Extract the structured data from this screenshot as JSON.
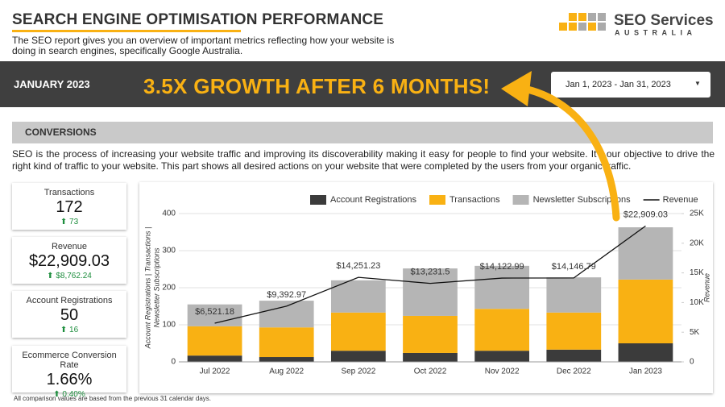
{
  "header": {
    "title": "SEARCH ENGINE OPTIMISATION PERFORMANCE",
    "subtitle": "The SEO report gives you an overview of important metrics reflecting how your website is doing in search engines, specifically Google Australia.",
    "logo_top": "SEO Services",
    "logo_bottom": "AUSTRALIA"
  },
  "banner": {
    "month": "JANUARY 2023",
    "headline": "3.5X GROWTH AFTER 6 MONTHS!",
    "date_range": "Jan 1, 2023 - Jan 31, 2023"
  },
  "section": {
    "title": "CONVERSIONS",
    "text": "SEO is the process of increasing your website traffic and improving its discoverability making it easy for people to find your website. It's our objective to drive the right kind of traffic to your website. This part shows all desired actions on your website that were completed by the users from your organic traffic."
  },
  "kpis": [
    {
      "label": "Transactions",
      "value": "172",
      "change": "73"
    },
    {
      "label": "Revenue",
      "value": "$22,909.03",
      "change": "$8,762.24"
    },
    {
      "label": "Account Registrations",
      "value": "50",
      "change": "16"
    },
    {
      "label": "Ecommerce Conversion Rate",
      "value": "1.66%",
      "change": "0.40%"
    }
  ],
  "footnote": "All comparison values are based from the previous 31 calendar days.",
  "chart_data": {
    "type": "bar",
    "stacked": true,
    "categories": [
      "Jul 2022",
      "Aug 2022",
      "Sep 2022",
      "Oct 2022",
      "Nov 2022",
      "Dec 2022",
      "Jan 2023"
    ],
    "series": [
      {
        "name": "Account Registrations",
        "color": "#3b3b3b",
        "values": [
          17,
          13,
          30,
          24,
          30,
          33,
          50
        ]
      },
      {
        "name": "Transactions",
        "color": "#f9b113",
        "values": [
          79,
          80,
          103,
          100,
          113,
          100,
          172
        ]
      },
      {
        "name": "Newsletter Subscriptions",
        "color": "#b5b5b5",
        "values": [
          59,
          72,
          87,
          128,
          116,
          95,
          141
        ]
      },
      {
        "name": "Revenue",
        "type": "line",
        "color": "#111111",
        "axis": "y2",
        "values": [
          6521.18,
          9392.97,
          14251.23,
          13231.5,
          14122.99,
          14146.79,
          22909.03
        ],
        "value_labels": [
          "$6,521.18",
          "$9,392.97",
          "$14,251.23",
          "$13,231.5",
          "$14,122.99",
          "$14,146.79",
          "$22,909.03"
        ]
      }
    ],
    "y_label": [
      "Account Registrations | Transactions |",
      "Newsletter Subscriptions"
    ],
    "y2_label": "Revenue",
    "ylim": [
      0,
      400
    ],
    "yticks": [
      0,
      100,
      200,
      300,
      400
    ],
    "y2lim": [
      0,
      25000
    ],
    "y2ticks": [
      {
        "value": 0,
        "label": "0"
      },
      {
        "value": 5000,
        "label": "5K"
      },
      {
        "value": 10000,
        "label": "10K"
      },
      {
        "value": 15000,
        "label": "15K"
      },
      {
        "value": 20000,
        "label": "20K"
      },
      {
        "value": 25000,
        "label": "25K"
      }
    ],
    "grid": true,
    "legend": "top"
  }
}
